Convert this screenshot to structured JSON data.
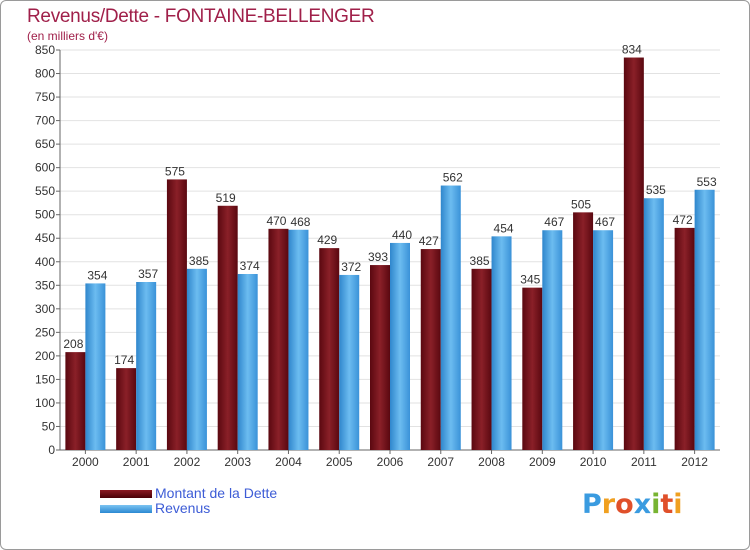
{
  "header": {
    "title": "Revenus/Dette - FONTAINE-BELLENGER",
    "subtitle": "(en milliers d'€)"
  },
  "legend": {
    "dette_label": "Montant de la Dette",
    "revenus_label": "Revenus"
  },
  "logo": {
    "text": "Proxiti",
    "letters": [
      "P",
      "r",
      "o",
      "x",
      "i",
      "t",
      "i"
    ]
  },
  "colors": {
    "title": "#a0204a",
    "dette": "#6e0f17",
    "revenus": "#4aa3e6",
    "legend_text": "#3d5cd6"
  },
  "chart_data": {
    "type": "bar",
    "categories": [
      "2000",
      "2001",
      "2002",
      "2003",
      "2004",
      "2005",
      "2006",
      "2007",
      "2008",
      "2009",
      "2010",
      "2011",
      "2012"
    ],
    "series": [
      {
        "name": "Montant de la Dette",
        "values": [
          208,
          174,
          575,
          519,
          470,
          429,
          393,
          427,
          385,
          345,
          505,
          834,
          472
        ]
      },
      {
        "name": "Revenus",
        "values": [
          354,
          357,
          385,
          374,
          468,
          372,
          440,
          562,
          454,
          467,
          467,
          535,
          553
        ]
      }
    ],
    "title": "Revenus/Dette - FONTAINE-BELLENGER",
    "subtitle": "(en milliers d'€)",
    "ylim": [
      0,
      850
    ],
    "yticks": [
      0,
      50,
      100,
      150,
      200,
      250,
      300,
      350,
      400,
      450,
      500,
      550,
      600,
      650,
      700,
      750,
      800,
      850
    ],
    "grid": true,
    "legend_position": "bottom-left"
  }
}
